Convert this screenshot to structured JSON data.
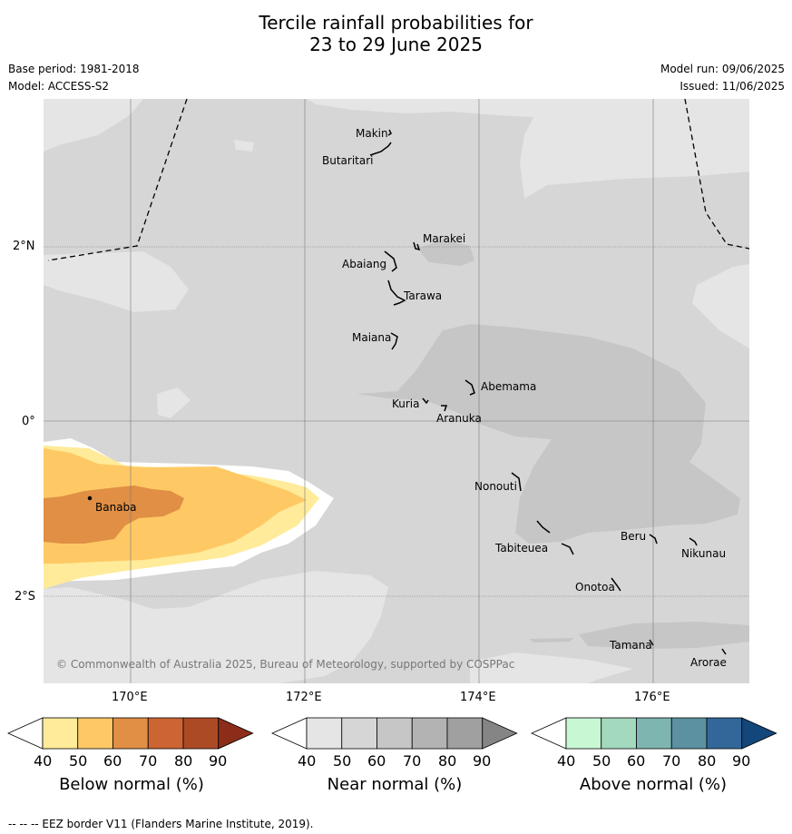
{
  "title": {
    "line1": "Tercile rainfall probabilities for",
    "line2": "23 to 29 June 2025"
  },
  "meta": {
    "base_period": "Base period: 1981-2018",
    "model": "Model: ACCESS-S2",
    "model_run": "Model run: 09/06/2025",
    "issued": "Issued: 11/06/2025"
  },
  "map": {
    "lat_labels": [
      "2°N",
      "0°",
      "2°S"
    ],
    "lon_labels": [
      "170°E",
      "172°E",
      "174°E",
      "176°E"
    ],
    "places": [
      {
        "name": "Makin"
      },
      {
        "name": "Butaritari"
      },
      {
        "name": "Marakei"
      },
      {
        "name": "Abaiang"
      },
      {
        "name": "Tarawa"
      },
      {
        "name": "Maiana"
      },
      {
        "name": "Abemama"
      },
      {
        "name": "Kuria"
      },
      {
        "name": "Aranuka"
      },
      {
        "name": "Banaba"
      },
      {
        "name": "Nonouti"
      },
      {
        "name": "Tabiteuea"
      },
      {
        "name": "Beru"
      },
      {
        "name": "Nikunau"
      },
      {
        "name": "Onotoa"
      },
      {
        "name": "Tamana"
      },
      {
        "name": "Arorae"
      }
    ],
    "copyright": "© Commonwealth of Australia 2025, Bureau of Meteorology, supported by COSPPac",
    "colors": {
      "near_light": "#e5e5e5",
      "near_mid": "#d6d6d6",
      "near_dark": "#c6c6c6"
    }
  },
  "colorbars": [
    {
      "label": "Below normal (%)",
      "ticks": [
        "40",
        "50",
        "60",
        "70",
        "80",
        "90"
      ],
      "colors": [
        "#ffffff",
        "#ffeb99",
        "#fec965",
        "#e08f45",
        "#cc6433",
        "#ad4a26",
        "#8c2d1a"
      ]
    },
    {
      "label": "Near normal (%)",
      "ticks": [
        "40",
        "50",
        "60",
        "70",
        "80",
        "90"
      ],
      "colors": [
        "#ffffff",
        "#e5e5e5",
        "#d6d6d6",
        "#c6c6c6",
        "#b3b3b3",
        "#a0a0a0",
        "#858585"
      ]
    },
    {
      "label": "Above normal (%)",
      "ticks": [
        "40",
        "50",
        "60",
        "70",
        "80",
        "90"
      ],
      "colors": [
        "#ffffff",
        "#c8f7d3",
        "#a3d9bd",
        "#7fb5b1",
        "#5b91a1",
        "#33679a",
        "#13467b"
      ]
    }
  ],
  "footnote": "--  --  -- EEZ border V11 (Flanders Marine Institute, 2019)."
}
